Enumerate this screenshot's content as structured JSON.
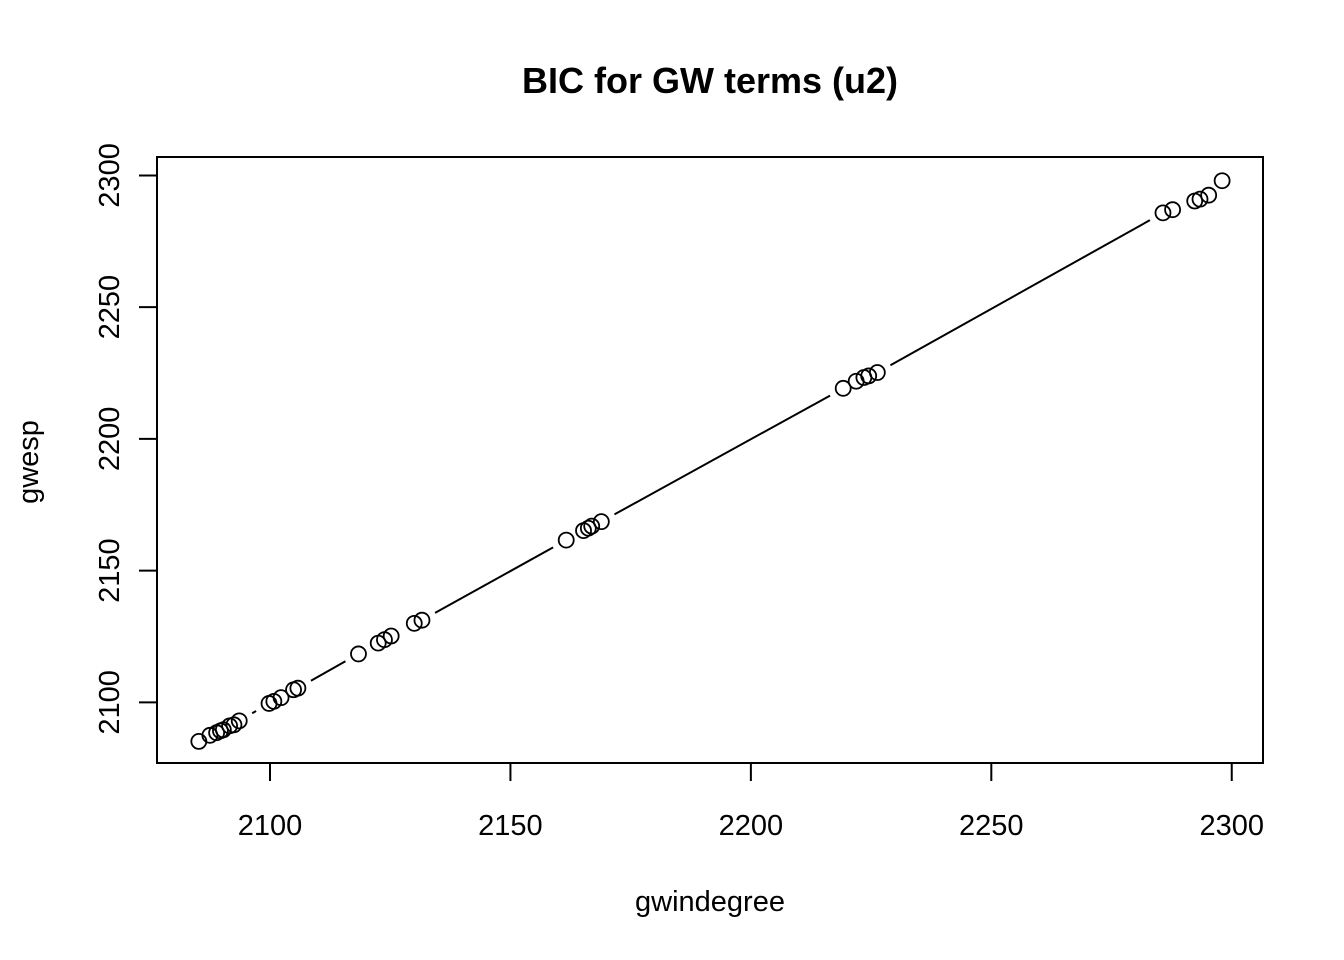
{
  "chart_data": {
    "type": "scatter",
    "title": "BIC for GW terms (u2)",
    "xlabel": "gwindegree",
    "ylabel": "gwesp",
    "xlim": [
      2076.5,
      2306.5
    ],
    "ylim": [
      2077,
      2307
    ],
    "x_ticks": [
      2100,
      2150,
      2200,
      2250,
      2300
    ],
    "y_ticks": [
      2100,
      2150,
      2200,
      2250,
      2300
    ],
    "x_tick_labels": [
      "2100",
      "2150",
      "2200",
      "2250",
      "2300"
    ],
    "y_tick_labels": [
      "2100",
      "2150",
      "2200",
      "2250",
      "2300"
    ],
    "grid": false,
    "legend": "none",
    "connecting_line": "type b (points joined by line segments with gaps around markers)",
    "points": [
      {
        "x": 2085.2,
        "y": 2085.2
      },
      {
        "x": 2087.5,
        "y": 2087.5
      },
      {
        "x": 2088.9,
        "y": 2088.5
      },
      {
        "x": 2089.7,
        "y": 2089.2
      },
      {
        "x": 2090.3,
        "y": 2089.6
      },
      {
        "x": 2091.6,
        "y": 2091.1
      },
      {
        "x": 2092.5,
        "y": 2091.5
      },
      {
        "x": 2093.6,
        "y": 2093.0
      },
      {
        "x": 2099.8,
        "y": 2099.6
      },
      {
        "x": 2100.8,
        "y": 2100.4
      },
      {
        "x": 2102.3,
        "y": 2101.8
      },
      {
        "x": 2104.9,
        "y": 2104.8
      },
      {
        "x": 2105.8,
        "y": 2105.4
      },
      {
        "x": 2118.4,
        "y": 2118.4
      },
      {
        "x": 2122.5,
        "y": 2122.5
      },
      {
        "x": 2123.8,
        "y": 2123.8
      },
      {
        "x": 2125.2,
        "y": 2125.2
      },
      {
        "x": 2130.0,
        "y": 2130.0
      },
      {
        "x": 2131.6,
        "y": 2131.2
      },
      {
        "x": 2161.6,
        "y": 2161.6
      },
      {
        "x": 2165.2,
        "y": 2165.2
      },
      {
        "x": 2166.2,
        "y": 2166.1
      },
      {
        "x": 2166.9,
        "y": 2166.9
      },
      {
        "x": 2168.9,
        "y": 2168.6
      },
      {
        "x": 2219.2,
        "y": 2219.2
      },
      {
        "x": 2221.9,
        "y": 2221.9
      },
      {
        "x": 2223.5,
        "y": 2223.3
      },
      {
        "x": 2224.5,
        "y": 2223.9
      },
      {
        "x": 2226.3,
        "y": 2225.2
      },
      {
        "x": 2285.7,
        "y": 2285.8
      },
      {
        "x": 2287.7,
        "y": 2287.0
      },
      {
        "x": 2292.3,
        "y": 2290.3
      },
      {
        "x": 2293.4,
        "y": 2291.0
      },
      {
        "x": 2295.2,
        "y": 2292.5
      },
      {
        "x": 2298.0,
        "y": 2298.0
      }
    ]
  }
}
